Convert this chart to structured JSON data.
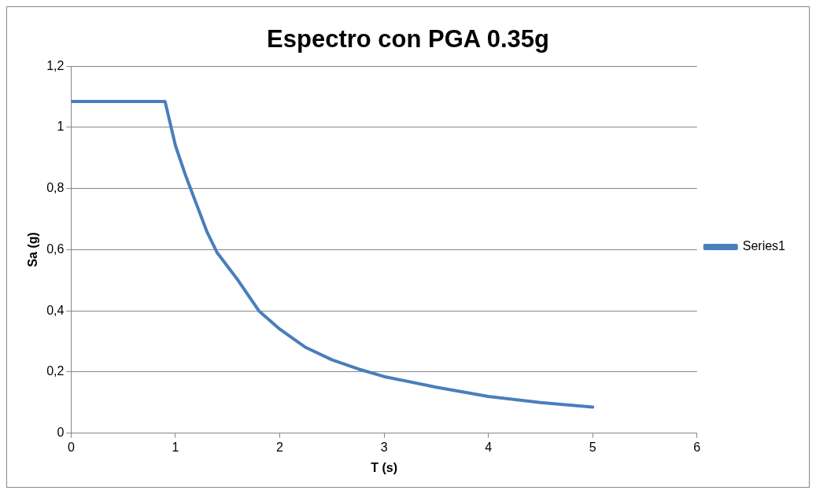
{
  "chart_data": {
    "type": "line",
    "title": "Espectro con PGA 0.35g",
    "xlabel": "T (s)",
    "ylabel": "Sa (g)",
    "x": [
      0,
      0.9,
      1.0,
      1.1,
      1.2,
      1.3,
      1.4,
      1.6,
      1.8,
      2.0,
      2.25,
      2.5,
      2.75,
      3.0,
      3.5,
      4.0,
      4.5,
      5.0
    ],
    "series": [
      {
        "name": "Series1",
        "color": "#4a7ebb",
        "values": [
          1.085,
          1.085,
          0.94,
          0.84,
          0.75,
          0.66,
          0.59,
          0.5,
          0.4,
          0.34,
          0.28,
          0.24,
          0.21,
          0.185,
          0.15,
          0.12,
          0.1,
          0.085
        ]
      }
    ],
    "xlim": [
      0,
      6
    ],
    "xticks": [
      0,
      1,
      2,
      3,
      4,
      5,
      6
    ],
    "ylim": [
      0,
      1.2
    ],
    "yticks": [
      {
        "value": 0,
        "label": "0"
      },
      {
        "value": 0.2,
        "label": "0,2"
      },
      {
        "value": 0.4,
        "label": "0,4"
      },
      {
        "value": 0.6,
        "label": "0,6"
      },
      {
        "value": 0.8,
        "label": "0,8"
      },
      {
        "value": 1,
        "label": "1"
      },
      {
        "value": 1.2,
        "label": "1,2"
      }
    ],
    "grid": "y",
    "legend": "right",
    "marker": "none",
    "line_style": "solid"
  }
}
